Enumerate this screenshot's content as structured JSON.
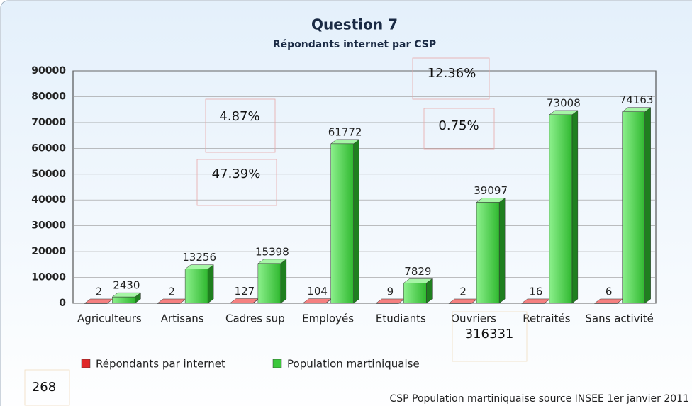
{
  "chart_data": {
    "type": "bar",
    "title": "Question 7",
    "subtitle": "Répondants internet par CSP",
    "categories": [
      "Agriculteurs",
      "Artisans",
      "Cadres sup",
      "Employés",
      "Etudiants",
      "Ouvriers",
      "Retraités",
      "Sans activité"
    ],
    "series": [
      {
        "name": "Répondants par internet",
        "color": "#e02828",
        "values": [
          2,
          2,
          127,
          104,
          9,
          2,
          16,
          6
        ]
      },
      {
        "name": "Population martiniquaise",
        "color": "#3cc83c",
        "values": [
          2430,
          13256,
          15398,
          61772,
          7829,
          39097,
          73008,
          74163
        ]
      }
    ],
    "ylim": [
      0,
      90000
    ],
    "yticks": [
      0,
      10000,
      20000,
      30000,
      40000,
      50000,
      60000,
      70000,
      80000,
      90000
    ],
    "grid": true,
    "annotations": [
      "4.87%",
      "47.39%",
      "12.36%",
      "0.75%",
      "316331",
      "268"
    ],
    "source": "CSP Population martiniquaise source INSEE 1er janvier 2011"
  }
}
